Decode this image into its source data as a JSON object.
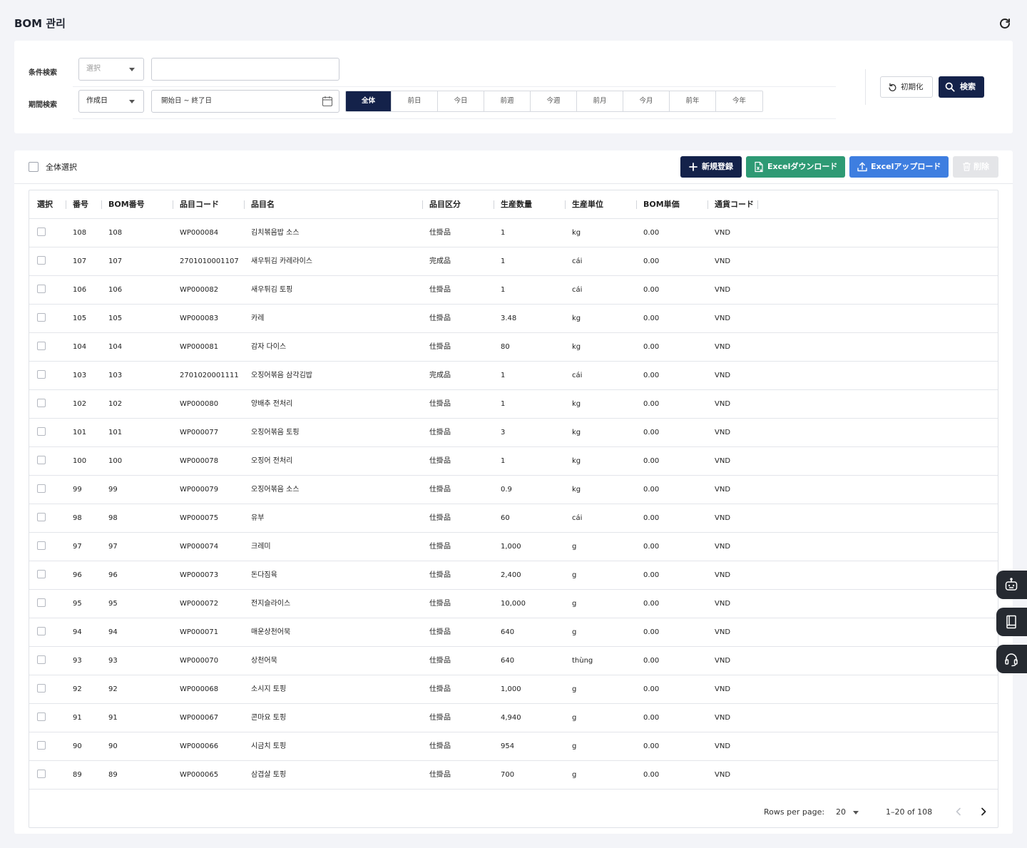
{
  "header": {
    "title": "BOM 관리"
  },
  "search": {
    "condition_label": "条件検索",
    "condition_select": "選択",
    "period_label": "期間検索",
    "period_select": "作成日",
    "date_placeholder": "開始日 ~ 終了日",
    "periods": [
      "全体",
      "前日",
      "今日",
      "前週",
      "今週",
      "前月",
      "今月",
      "前年",
      "今年"
    ],
    "reset_label": "初期化",
    "search_label": "検索"
  },
  "toolbar": {
    "select_all": "全体選択",
    "new_label": "新規登録",
    "download_label": "Excelダウンロード",
    "upload_label": "Excelアップロード",
    "delete_label": "削除"
  },
  "table": {
    "columns": [
      "選択",
      "番号",
      "BOM番号",
      "品目コード",
      "品目名",
      "品目区分",
      "生産数量",
      "生産単位",
      "BOM単価",
      "通貨コード"
    ],
    "rows": [
      [
        "108",
        "108",
        "WP000084",
        "김치볶음밥 소스",
        "仕掛品",
        "1",
        "kg",
        "0.00",
        "VND"
      ],
      [
        "107",
        "107",
        "2701010001107",
        "새우튀김 카레라이스",
        "完成品",
        "1",
        "cái",
        "0.00",
        "VND"
      ],
      [
        "106",
        "106",
        "WP000082",
        "새우튀김 토핑",
        "仕掛品",
        "1",
        "cái",
        "0.00",
        "VND"
      ],
      [
        "105",
        "105",
        "WP000083",
        "카레",
        "仕掛品",
        "3.48",
        "kg",
        "0.00",
        "VND"
      ],
      [
        "104",
        "104",
        "WP000081",
        "감자 다이스",
        "仕掛品",
        "80",
        "kg",
        "0.00",
        "VND"
      ],
      [
        "103",
        "103",
        "2701020001111",
        "오징어볶음 삼각김밥",
        "完成品",
        "1",
        "cái",
        "0.00",
        "VND"
      ],
      [
        "102",
        "102",
        "WP000080",
        "양배추 전처리",
        "仕掛品",
        "1",
        "kg",
        "0.00",
        "VND"
      ],
      [
        "101",
        "101",
        "WP000077",
        "오징어볶음 토핑",
        "仕掛品",
        "3",
        "kg",
        "0.00",
        "VND"
      ],
      [
        "100",
        "100",
        "WP000078",
        "오징어 전처리",
        "仕掛品",
        "1",
        "kg",
        "0.00",
        "VND"
      ],
      [
        "99",
        "99",
        "WP000079",
        "오징어볶음 소스",
        "仕掛品",
        "0.9",
        "kg",
        "0.00",
        "VND"
      ],
      [
        "98",
        "98",
        "WP000075",
        "유부",
        "仕掛品",
        "60",
        "cái",
        "0.00",
        "VND"
      ],
      [
        "97",
        "97",
        "WP000074",
        "크레미",
        "仕掛品",
        "1,000",
        "g",
        "0.00",
        "VND"
      ],
      [
        "96",
        "96",
        "WP000073",
        "돈다짐육",
        "仕掛品",
        "2,400",
        "g",
        "0.00",
        "VND"
      ],
      [
        "95",
        "95",
        "WP000072",
        "전지슬라이스",
        "仕掛品",
        "10,000",
        "g",
        "0.00",
        "VND"
      ],
      [
        "94",
        "94",
        "WP000071",
        "매운상천어묵",
        "仕掛品",
        "640",
        "g",
        "0.00",
        "VND"
      ],
      [
        "93",
        "93",
        "WP000070",
        "상천어묵",
        "仕掛品",
        "640",
        "thùng",
        "0.00",
        "VND"
      ],
      [
        "92",
        "92",
        "WP000068",
        "소시지 토핑",
        "仕掛品",
        "1,000",
        "g",
        "0.00",
        "VND"
      ],
      [
        "91",
        "91",
        "WP000067",
        "콘마요 토핑",
        "仕掛品",
        "4,940",
        "g",
        "0.00",
        "VND"
      ],
      [
        "90",
        "90",
        "WP000066",
        "시금치 토핑",
        "仕掛品",
        "954",
        "g",
        "0.00",
        "VND"
      ],
      [
        "89",
        "89",
        "WP000065",
        "삼겹살 토핑",
        "仕掛品",
        "700",
        "g",
        "0.00",
        "VND"
      ]
    ]
  },
  "pagination": {
    "rows_per_page_label": "Rows per page:",
    "rows_per_page": "20",
    "range": "1–20 of 108"
  },
  "colors": {
    "primary": "#14224a",
    "excel_download": "#2e9a74",
    "excel_upload": "#3e7ee0",
    "float_button": "#262a31"
  },
  "floating_icons": [
    "robot-icon",
    "manual-book-icon",
    "headset-icon"
  ]
}
